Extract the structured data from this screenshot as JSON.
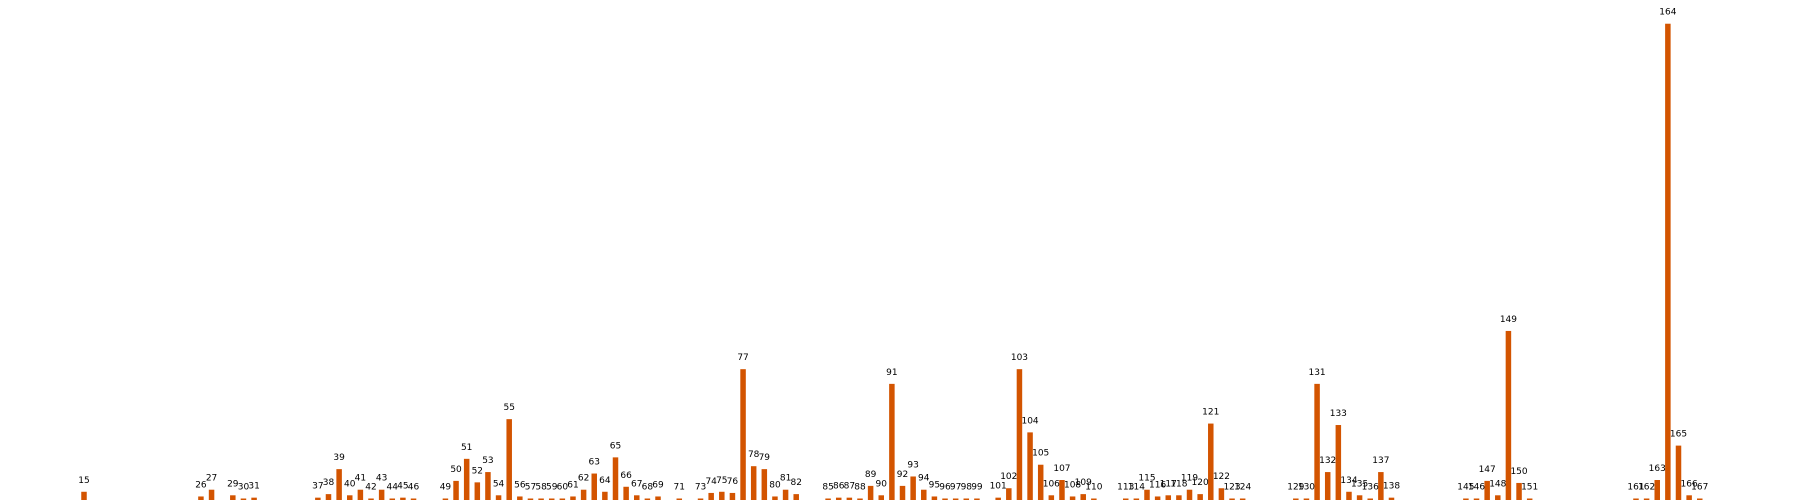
{
  "chart_data": {
    "type": "bar",
    "title": "",
    "xlabel": "",
    "ylabel": "",
    "ylim": [
      0,
      160
    ],
    "grid": false,
    "bar_color": "#d35400",
    "bars": [
      {
        "label": "15",
        "value": 2.8
      },
      {
        "label": "26",
        "value": 1.2
      },
      {
        "label": "27",
        "value": 3.5
      },
      {
        "label": "29",
        "value": 1.6
      },
      {
        "label": "30",
        "value": 0.4
      },
      {
        "label": "31",
        "value": 0.8
      },
      {
        "label": "37",
        "value": 0.8
      },
      {
        "label": "38",
        "value": 2.0
      },
      {
        "label": "39",
        "value": 10.5
      },
      {
        "label": "40",
        "value": 1.6
      },
      {
        "label": "41",
        "value": 3.5
      },
      {
        "label": "42",
        "value": 0.4
      },
      {
        "label": "43",
        "value": 3.5
      },
      {
        "label": "44",
        "value": 0.4
      },
      {
        "label": "45",
        "value": 0.8
      },
      {
        "label": "46",
        "value": 0.4
      },
      {
        "label": "49",
        "value": 0.4
      },
      {
        "label": "50",
        "value": 6.5
      },
      {
        "label": "51",
        "value": 14.0
      },
      {
        "label": "52",
        "value": 6.0
      },
      {
        "label": "53",
        "value": 9.5
      },
      {
        "label": "54",
        "value": 1.6
      },
      {
        "label": "55",
        "value": 27.5
      },
      {
        "label": "56",
        "value": 1.2
      },
      {
        "label": "57",
        "value": 0.4
      },
      {
        "label": "58",
        "value": 0.1
      },
      {
        "label": "59",
        "value": 0.4
      },
      {
        "label": "60",
        "value": 0.4
      },
      {
        "label": "61",
        "value": 1.2
      },
      {
        "label": "62",
        "value": 3.5
      },
      {
        "label": "63",
        "value": 9.0
      },
      {
        "label": "64",
        "value": 2.8
      },
      {
        "label": "65",
        "value": 14.5
      },
      {
        "label": "66",
        "value": 4.5
      },
      {
        "label": "67",
        "value": 1.6
      },
      {
        "label": "68",
        "value": 0.4
      },
      {
        "label": "69",
        "value": 1.2
      },
      {
        "label": "71",
        "value": 0.1
      },
      {
        "label": "73",
        "value": 0.4
      },
      {
        "label": "74",
        "value": 2.4
      },
      {
        "label": "75",
        "value": 2.8
      },
      {
        "label": "76",
        "value": 2.4
      },
      {
        "label": "77",
        "value": 44.5
      },
      {
        "label": "78",
        "value": 11.5
      },
      {
        "label": "79",
        "value": 10.5
      },
      {
        "label": "80",
        "value": 1.2
      },
      {
        "label": "81",
        "value": 3.5
      },
      {
        "label": "82",
        "value": 2.0
      },
      {
        "label": "85",
        "value": 0.4
      },
      {
        "label": "86",
        "value": 0.8
      },
      {
        "label": "87",
        "value": 0.8
      },
      {
        "label": "88",
        "value": 0.4
      },
      {
        "label": "89",
        "value": 4.8
      },
      {
        "label": "90",
        "value": 1.6
      },
      {
        "label": "91",
        "value": 39.5
      },
      {
        "label": "92",
        "value": 4.8
      },
      {
        "label": "93",
        "value": 8.0
      },
      {
        "label": "94",
        "value": 3.5
      },
      {
        "label": "95",
        "value": 1.2
      },
      {
        "label": "96",
        "value": 0.1
      },
      {
        "label": "97",
        "value": 0.1
      },
      {
        "label": "98",
        "value": 0.4
      },
      {
        "label": "99",
        "value": 0.1
      },
      {
        "label": "101",
        "value": 0.8
      },
      {
        "label": "102",
        "value": 4.0
      },
      {
        "label": "103",
        "value": 44.5
      },
      {
        "label": "104",
        "value": 23.0
      },
      {
        "label": "105",
        "value": 12.0
      },
      {
        "label": "106",
        "value": 1.6
      },
      {
        "label": "107",
        "value": 6.8
      },
      {
        "label": "108",
        "value": 1.2
      },
      {
        "label": "109",
        "value": 2.0
      },
      {
        "label": "110",
        "value": 0.4
      },
      {
        "label": "113",
        "value": 0.1
      },
      {
        "label": "114",
        "value": 0.1
      },
      {
        "label": "115",
        "value": 3.5
      },
      {
        "label": "116",
        "value": 1.2
      },
      {
        "label": "117",
        "value": 1.6
      },
      {
        "label": "118",
        "value": 1.6
      },
      {
        "label": "119",
        "value": 3.5
      },
      {
        "label": "120",
        "value": 2.0
      },
      {
        "label": "121",
        "value": 26.0
      },
      {
        "label": "122",
        "value": 4.0
      },
      {
        "label": "123",
        "value": 0.4
      },
      {
        "label": "124",
        "value": 0.4
      },
      {
        "label": "129",
        "value": 0.1
      },
      {
        "label": "130",
        "value": 0.4
      },
      {
        "label": "131",
        "value": 39.5
      },
      {
        "label": "132",
        "value": 9.5
      },
      {
        "label": "133",
        "value": 25.5
      },
      {
        "label": "134",
        "value": 2.8
      },
      {
        "label": "135",
        "value": 1.6
      },
      {
        "label": "136",
        "value": 0.4
      },
      {
        "label": "137",
        "value": 9.5
      },
      {
        "label": "138",
        "value": 0.8
      },
      {
        "label": "145",
        "value": 0.4
      },
      {
        "label": "146",
        "value": 0.4
      },
      {
        "label": "147",
        "value": 6.5
      },
      {
        "label": "148",
        "value": 1.6
      },
      {
        "label": "149",
        "value": 57.5
      },
      {
        "label": "150",
        "value": 5.8
      },
      {
        "label": "151",
        "value": 0.4
      },
      {
        "label": "161",
        "value": 0.1
      },
      {
        "label": "162",
        "value": 0.4
      },
      {
        "label": "163",
        "value": 6.8
      },
      {
        "label": "164",
        "value": 162.0
      },
      {
        "label": "165",
        "value": 18.5
      },
      {
        "label": "166",
        "value": 1.6
      },
      {
        "label": "167",
        "value": 0.1
      }
    ]
  }
}
